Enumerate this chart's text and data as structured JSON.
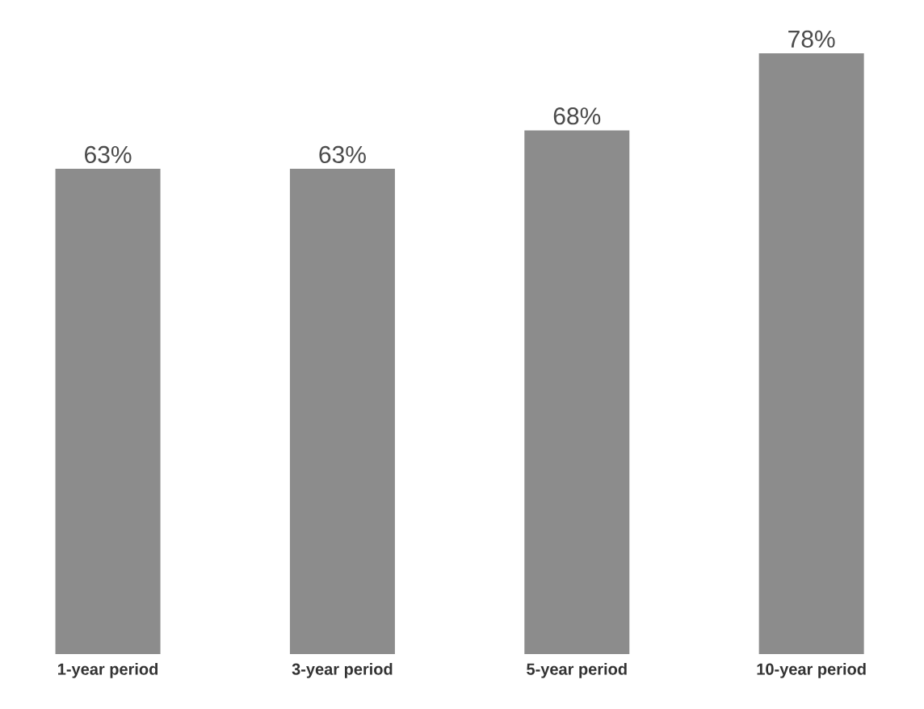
{
  "chart_data": {
    "type": "bar",
    "categories": [
      "1-year period",
      "3-year period",
      "5-year period",
      "10-year period"
    ],
    "values": [
      63,
      63,
      68,
      78
    ],
    "value_labels": [
      "63%",
      "63%",
      "68%",
      "78%"
    ],
    "color": "#8c8c8c"
  }
}
